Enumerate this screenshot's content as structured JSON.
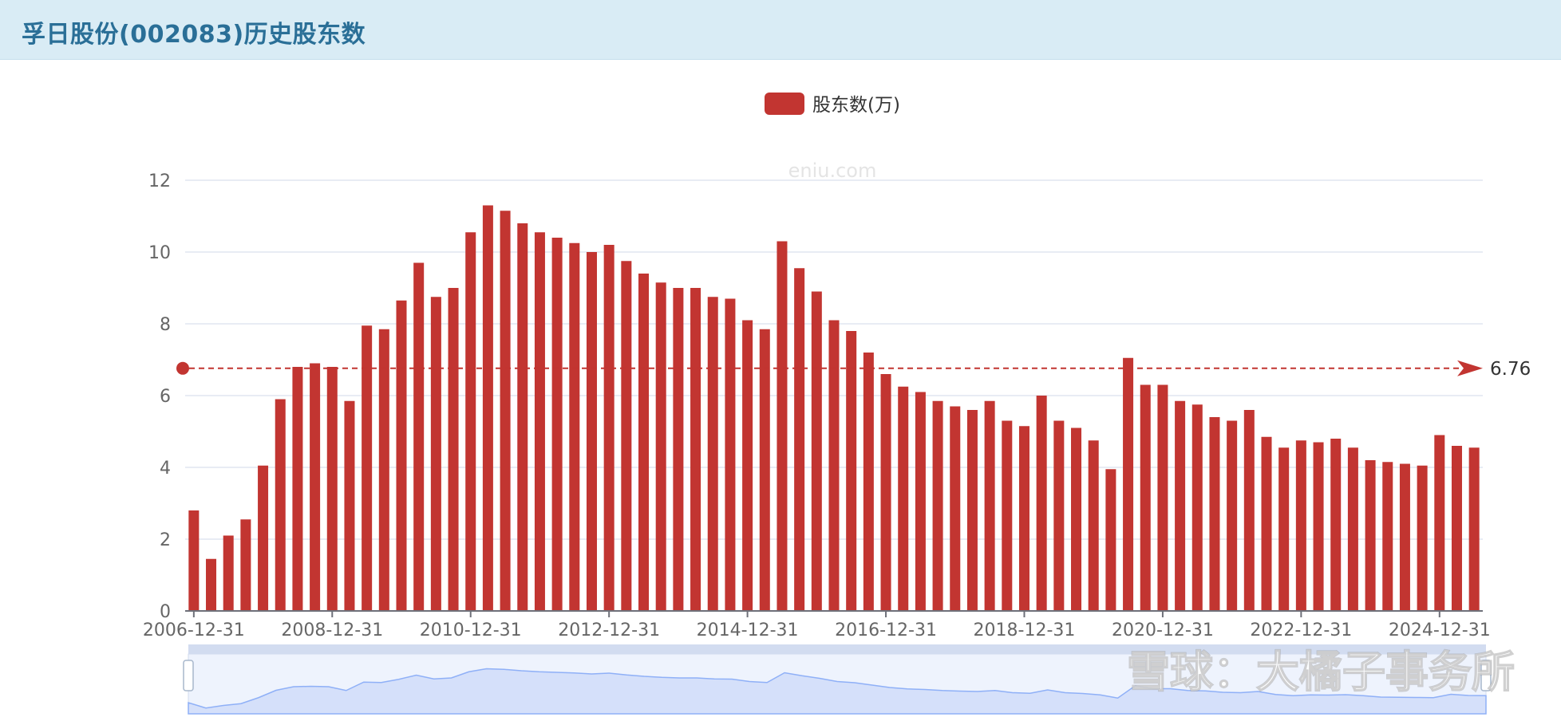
{
  "header": {
    "title": "孚日股份(002083)历史股东数"
  },
  "legend": {
    "label": "股东数(万)"
  },
  "watermark_text": "eniu.com",
  "site_watermark": "雪球：大橘子事务所",
  "colors": {
    "bar": "#c23531",
    "header_bg": "#d9ecf5",
    "title": "#2a6f97",
    "zoom_fill": "#d5e0fa"
  },
  "chart_data": {
    "type": "bar",
    "series": [
      {
        "name": "股东数(万)",
        "values": [
          2.8,
          1.45,
          2.1,
          2.55,
          4.05,
          5.9,
          6.8,
          6.9,
          6.8,
          5.85,
          7.95,
          7.85,
          8.65,
          9.7,
          8.75,
          9.0,
          10.55,
          11.3,
          11.15,
          10.8,
          10.55,
          10.4,
          10.25,
          10.0,
          10.2,
          9.75,
          9.4,
          9.15,
          9.0,
          9.0,
          8.75,
          8.7,
          8.1,
          7.85,
          10.3,
          9.55,
          8.9,
          8.1,
          7.8,
          7.2,
          6.6,
          6.25,
          6.1,
          5.85,
          5.7,
          5.6,
          5.85,
          5.3,
          5.15,
          6.0,
          5.3,
          5.1,
          4.75,
          3.95,
          7.05,
          6.3,
          6.3,
          5.85,
          5.75,
          5.4,
          5.3,
          5.6,
          4.85,
          4.55,
          4.75,
          4.7,
          4.8,
          4.55,
          4.2,
          4.15,
          4.1,
          4.05,
          4.9,
          4.6,
          4.55
        ]
      }
    ],
    "x_tick_labels": [
      "2006-12-31",
      "2008-12-31",
      "2010-12-31",
      "2012-12-31",
      "2014-12-31",
      "2016-12-31",
      "2018-12-31",
      "2020-12-31",
      "2022-12-31",
      "2024-12-31"
    ],
    "x_tick_indices": [
      0,
      8,
      16,
      24,
      32,
      40,
      48,
      56,
      64,
      72
    ],
    "y_ticks": [
      0,
      2,
      4,
      6,
      8,
      10,
      12
    ],
    "ylim": [
      0,
      12
    ],
    "average_line": {
      "value": 6.76,
      "label": "6.76"
    },
    "grid": true,
    "legend_position": "top-center",
    "data_zoom": true
  }
}
